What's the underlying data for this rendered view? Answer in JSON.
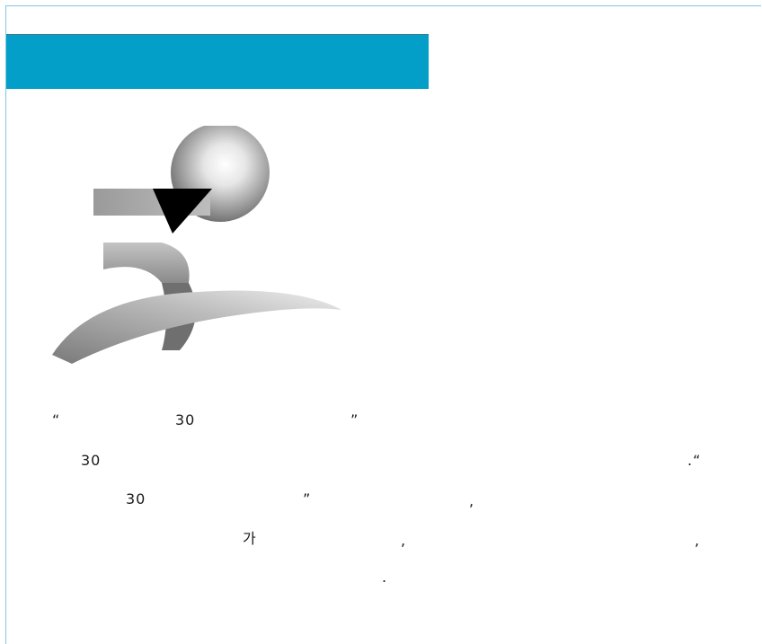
{
  "header": {
    "banner_color": "#049fc8"
  },
  "logo": {
    "icon": "30-anniversary-logo-icon"
  },
  "body_text": {
    "line1": {
      "open_quote": "“",
      "num": "30",
      "close_quote": "”"
    },
    "line2": {
      "num": "30",
      "end": ".“"
    },
    "line3": {
      "num": "30",
      "close_quote": "”",
      "comma": ","
    },
    "line4": {
      "ga": "가",
      "comma1": ",",
      "comma2": ","
    },
    "line5": {
      "period": "."
    }
  }
}
